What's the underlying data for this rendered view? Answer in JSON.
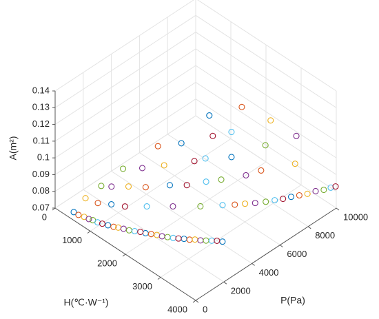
{
  "chart_data": {
    "type": "scatter3d",
    "xlabel": "H(℃·W⁻¹)",
    "ylabel": "P(Pa)",
    "zlabel": "A(m²)",
    "xlim": [
      0,
      4000
    ],
    "xticks": [
      0,
      1000,
      2000,
      3000,
      4000
    ],
    "ylim": [
      0,
      10000
    ],
    "yticks": [
      0,
      2000,
      4000,
      6000,
      8000,
      10000
    ],
    "zlim": [
      0.07,
      0.14
    ],
    "zticks": [
      0.07,
      0.08,
      0.09,
      0.1,
      0.11,
      0.12,
      0.13,
      0.14
    ],
    "grid": true,
    "series": [
      {
        "color": "#0072BD",
        "x": [
          530,
          1320,
          2190,
          3080,
          3970,
          3560,
          2000,
          1660,
          2310,
          1680,
          900
        ],
        "y": [
          0,
          460,
          960,
          1470,
          1980,
          7890,
          5970,
          4830,
          6770,
          3960,
          1750
        ],
        "z": [
          0.0749,
          0.0754,
          0.0799,
          0.086,
          0.0938,
          0.0823,
          0.12,
          0.105,
          0.095,
          0.085,
          0.075
        ]
      },
      {
        "color": "#D95319",
        "x": [
          640,
          1450,
          2320,
          3210,
          3000,
          3640,
          2460,
          1210,
          2840,
          1380,
          680
        ],
        "y": [
          60,
          530,
          1030,
          1540,
          5280,
          8270,
          7130,
          4290,
          7550,
          2990,
          1340
        ],
        "z": [
          0.0744,
          0.0759,
          0.0808,
          0.0869,
          0.0843,
          0.0822,
          0.125,
          0.1,
          0.09,
          0.085,
          0.075
        ]
      },
      {
        "color": "#EDB120",
        "x": [
          770,
          1560,
          2450,
          3330,
          3100,
          3720,
          2980,
          1530,
          3360,
          1120,
          400
        ],
        "y": [
          140,
          590,
          1110,
          1620,
          5760,
          8650,
          7880,
          3930,
          8670,
          2420,
          1160
        ],
        "z": [
          0.0746,
          0.0766,
          0.0816,
          0.0882,
          0.0836,
          0.0821,
          0.12,
          0.095,
          0.095,
          0.085,
          0.075
        ]
      },
      {
        "color": "#7E2F8E",
        "x": [
          880,
          1680,
          2570,
          3460,
          3200,
          3800,
          3320,
          1280,
          2730,
          880,
          1820
        ],
        "y": [
          200,
          670,
          1180,
          1690,
          6230,
          9030,
          8860,
          3000,
          6750,
          1810,
          3830
        ],
        "z": [
          0.0745,
          0.0771,
          0.0821,
          0.0891,
          0.0828,
          0.0827,
          0.11,
          0.095,
          0.09,
          0.085,
          0.075
        ]
      },
      {
        "color": "#77AC30",
        "x": [
          970,
          1810,
          2700,
          3590,
          3310,
          3880,
          2900,
          1020,
          2290,
          720,
          2210
        ],
        "y": [
          260,
          740,
          1250,
          1760,
          6710,
          9410,
          7710,
          2280,
          6090,
          1480,
          4810
        ],
        "z": [
          0.0747,
          0.0776,
          0.083,
          0.0904,
          0.0824,
          0.0825,
          0.105,
          0.095,
          0.085,
          0.085,
          0.075
        ]
      },
      {
        "color": "#4DBEEE",
        "x": [
          1080,
          1940,
          2830,
          3720,
          3400,
          3950,
          2310,
          1970,
          2120,
          1450,
          2500
        ],
        "y": [
          320,
          810,
          1320,
          1840,
          7120,
          9730,
          6770,
          5770,
          5440,
          2900,
          5660
        ],
        "z": [
          0.0746,
          0.0785,
          0.0839,
          0.0917,
          0.0823,
          0.083,
          0.11,
          0.095,
          0.085,
          0.075,
          0.075
        ]
      },
      {
        "color": "#A2142F",
        "x": [
          1190,
          2070,
          2950,
          3840,
          3480,
          4000,
          2130,
          1870,
          1920,
          1140
        ],
        "y": [
          380,
          890,
          1400,
          1910,
          7510,
          9950,
          5890,
          5230,
          4570,
          2120
        ],
        "z": [
          0.075,
          0.0794,
          0.0848,
          0.0929,
          0.0821,
          0.0832,
          0.11,
          0.095,
          0.085,
          0.075
        ]
      }
    ]
  }
}
